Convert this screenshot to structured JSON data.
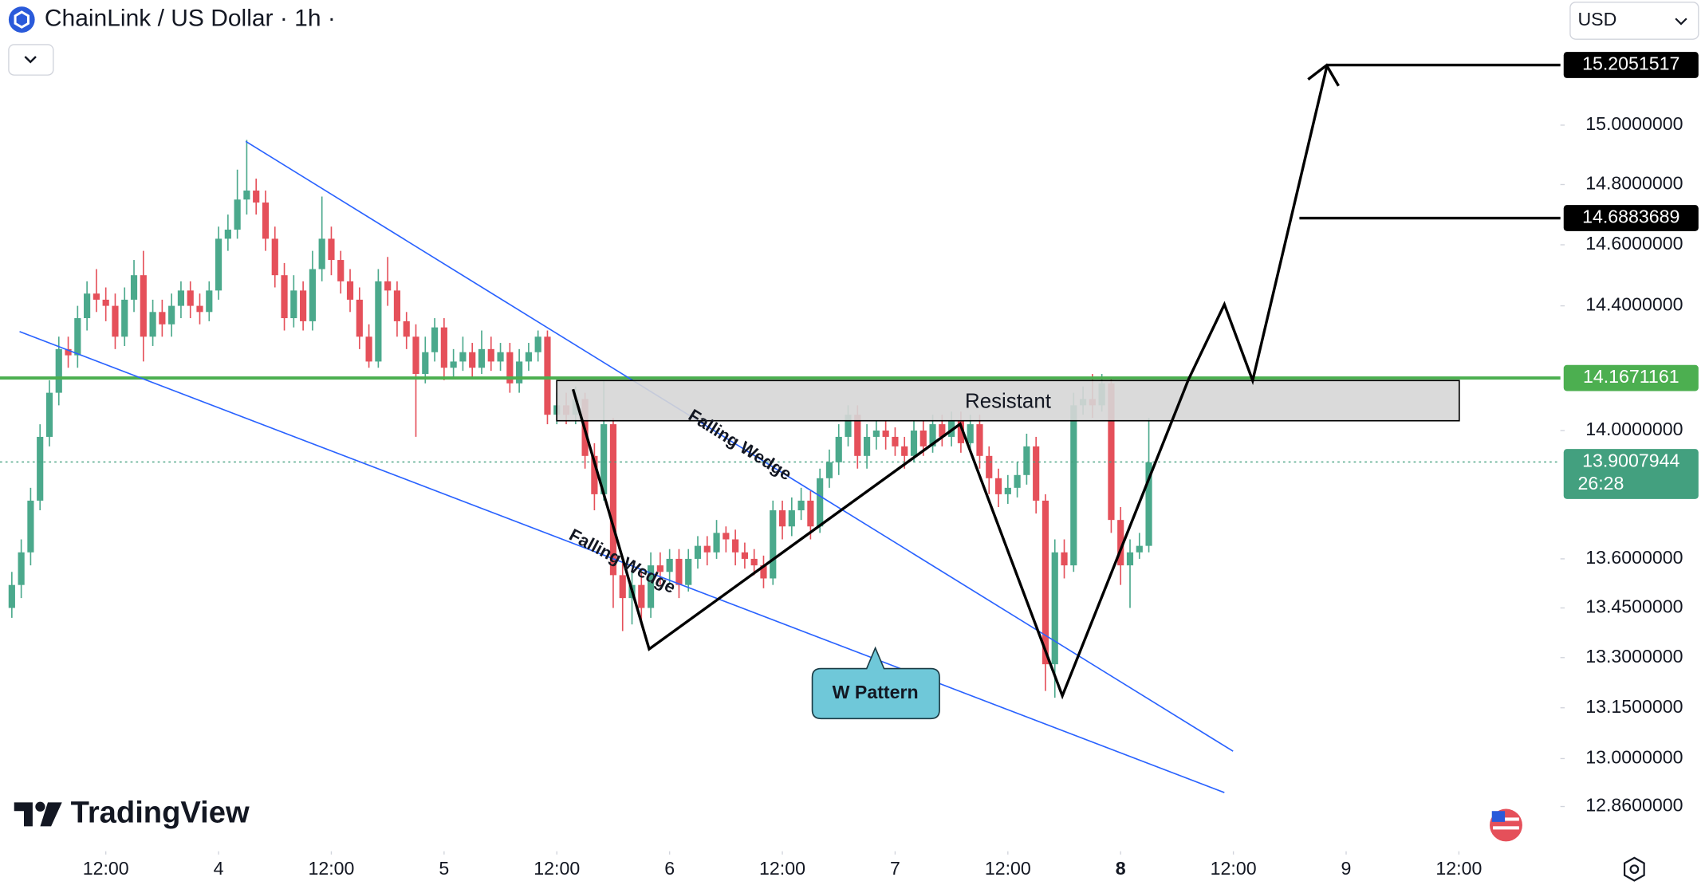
{
  "header": {
    "title": "ChainLink / US Dollar · 1h ·",
    "currency": "USD"
  },
  "brand": "TradingView",
  "chart_data": {
    "type": "candlestick",
    "log_scale": true,
    "ylim": [
      12.74,
      15.43
    ],
    "yticks": [
      {
        "value": 15,
        "label": "15.0000000"
      },
      {
        "value": 14.8,
        "label": "14.8000000"
      },
      {
        "value": 14.6,
        "label": "14.6000000"
      },
      {
        "value": 14.4,
        "label": "14.4000000"
      },
      {
        "value": 14,
        "label": "14.0000000"
      },
      {
        "value": 13.6,
        "label": "13.6000000"
      },
      {
        "value": 13.45,
        "label": "13.4500000"
      },
      {
        "value": 13.3,
        "label": "13.3000000"
      },
      {
        "value": 13.15,
        "label": "13.1500000"
      },
      {
        "value": 13,
        "label": "13.0000000"
      },
      {
        "value": 12.86,
        "label": "12.8600000"
      }
    ],
    "xlim": [
      -23.26,
      142.8
    ],
    "xticks": [
      {
        "value": -12,
        "label": "12:00"
      },
      {
        "value": 0,
        "label": "4"
      },
      {
        "value": 12,
        "label": "12:00"
      },
      {
        "value": 24,
        "label": "5"
      },
      {
        "value": 36,
        "label": "12:00"
      },
      {
        "value": 48,
        "label": "6"
      },
      {
        "value": 60,
        "label": "12:00"
      },
      {
        "value": 72,
        "label": "7"
      },
      {
        "value": 84,
        "label": "12:00"
      },
      {
        "value": 96,
        "label": "8"
      },
      {
        "value": 108,
        "label": "12:00"
      },
      {
        "value": 120,
        "label": "9"
      },
      {
        "value": 132,
        "label": "12:00"
      }
    ],
    "series": [
      {
        "up_color": "#4ba98c",
        "down_color": "#e5505a",
        "x": [
          -22,
          -21,
          -20,
          -19,
          -18,
          -17,
          -16,
          -15,
          -14,
          -13,
          -12,
          -11,
          -10,
          -9,
          -8,
          -7,
          -6,
          -5,
          -4,
          -3,
          -2,
          -1,
          0,
          1,
          2,
          3,
          4,
          5,
          6,
          7,
          8,
          9,
          10,
          11,
          12,
          13,
          14,
          15,
          16,
          17,
          18,
          19,
          20,
          21,
          22,
          23,
          24,
          25,
          26,
          27,
          28,
          29,
          30,
          31,
          32,
          33,
          34,
          35,
          36,
          37,
          38,
          39,
          40,
          41,
          42,
          43,
          44,
          45,
          46,
          47,
          48,
          49,
          50,
          51,
          52,
          53,
          54,
          55,
          56,
          57,
          58,
          59,
          60,
          61,
          62,
          63,
          64,
          65,
          66,
          67,
          68,
          69,
          70,
          71,
          72,
          73,
          74,
          75,
          76,
          77,
          78,
          79,
          80,
          81,
          82,
          83,
          84,
          85,
          86,
          87,
          88,
          89,
          90,
          91,
          92,
          93,
          94,
          95,
          96,
          97,
          98,
          99
        ],
        "open": [
          13.45,
          13.52,
          13.62,
          13.78,
          13.98,
          14.12,
          14.26,
          14.24,
          14.36,
          14.44,
          14.42,
          14.4,
          14.3,
          14.42,
          14.5,
          14.3,
          14.38,
          14.34,
          14.4,
          14.45,
          14.4,
          14.38,
          14.45,
          14.62,
          14.65,
          14.75,
          14.78,
          14.74,
          14.62,
          14.5,
          14.36,
          14.45,
          14.35,
          14.52,
          14.62,
          14.55,
          14.48,
          14.42,
          14.3,
          14.22,
          14.48,
          14.45,
          14.35,
          14.3,
          14.18,
          14.25,
          14.33,
          14.2,
          14.22,
          14.25,
          14.2,
          14.26,
          14.22,
          14.25,
          14.15,
          14.22,
          14.25,
          14.3,
          14.05,
          14.08,
          14.05,
          14.1,
          13.92,
          13.8,
          14.02,
          13.55,
          13.48,
          13.52,
          13.45,
          13.58,
          13.56,
          13.6,
          13.52,
          13.6,
          13.64,
          13.62,
          13.68,
          13.66,
          13.62,
          13.6,
          13.58,
          13.54,
          13.75,
          13.7,
          13.75,
          13.78,
          13.7,
          13.85,
          13.9,
          13.98,
          14.05,
          13.92,
          13.98,
          14.0,
          13.98,
          13.95,
          13.92,
          14.0,
          13.95,
          14.02,
          13.98,
          14.03,
          13.96,
          14.02,
          13.92,
          13.85,
          13.8,
          13.82,
          13.86,
          13.95,
          13.78,
          13.28,
          13.62,
          13.58,
          14.08,
          14.1,
          14.08,
          14.15,
          13.72,
          13.58,
          13.62,
          13.64
        ],
        "high": [
          13.56,
          13.66,
          13.82,
          14.02,
          14.16,
          14.3,
          14.3,
          14.4,
          14.48,
          14.52,
          14.46,
          14.44,
          14.46,
          14.55,
          14.58,
          14.42,
          14.42,
          14.44,
          14.48,
          14.48,
          14.44,
          14.48,
          14.66,
          14.7,
          14.85,
          14.95,
          14.82,
          14.78,
          14.66,
          14.54,
          14.5,
          14.48,
          14.58,
          14.76,
          14.66,
          14.58,
          14.52,
          14.46,
          14.34,
          14.52,
          14.56,
          14.48,
          14.38,
          14.34,
          14.3,
          14.36,
          14.36,
          14.26,
          14.3,
          14.28,
          14.32,
          14.3,
          14.28,
          14.28,
          14.26,
          14.28,
          14.32,
          14.32,
          14.12,
          14.12,
          14.14,
          14.12,
          13.96,
          14.16,
          14.04,
          13.6,
          13.56,
          13.56,
          13.62,
          13.62,
          13.63,
          13.63,
          13.63,
          13.67,
          13.67,
          13.72,
          13.7,
          13.69,
          13.65,
          13.63,
          13.61,
          13.78,
          13.78,
          13.79,
          13.82,
          13.81,
          13.88,
          13.94,
          14.02,
          14.08,
          14.08,
          14.02,
          14.03,
          14.03,
          14.01,
          13.98,
          14.03,
          14.03,
          14.05,
          14.05,
          14.06,
          14.06,
          14.05,
          14.05,
          13.95,
          13.88,
          13.86,
          13.9,
          13.99,
          13.98,
          13.8,
          13.66,
          13.66,
          14.12,
          14.14,
          14.18,
          14.18,
          14.17,
          13.76,
          13.66,
          13.68,
          14.04
        ],
        "low": [
          13.42,
          13.48,
          13.58,
          13.75,
          13.95,
          14.08,
          14.2,
          14.2,
          14.32,
          14.38,
          14.35,
          14.26,
          14.27,
          14.38,
          14.22,
          14.27,
          14.3,
          14.3,
          14.36,
          14.36,
          14.34,
          14.35,
          14.42,
          14.58,
          14.62,
          14.7,
          14.7,
          14.58,
          14.46,
          14.32,
          14.33,
          14.32,
          14.32,
          14.48,
          14.5,
          14.44,
          14.38,
          14.26,
          14.2,
          14.2,
          14.4,
          14.3,
          14.26,
          13.98,
          14.15,
          14.22,
          14.16,
          14.17,
          14.19,
          14.17,
          14.18,
          14.19,
          14.19,
          14.12,
          14.12,
          14.19,
          14.22,
          14.02,
          14.02,
          14.02,
          14.02,
          13.88,
          13.75,
          13.78,
          13.45,
          13.38,
          13.4,
          13.4,
          13.42,
          13.52,
          13.52,
          13.48,
          13.5,
          13.57,
          13.58,
          13.6,
          13.62,
          13.58,
          13.57,
          13.55,
          13.51,
          13.52,
          13.66,
          13.67,
          13.72,
          13.66,
          13.68,
          13.82,
          13.86,
          13.95,
          13.88,
          13.88,
          13.94,
          13.94,
          13.92,
          13.88,
          13.9,
          13.92,
          13.93,
          13.95,
          13.95,
          13.93,
          13.93,
          13.88,
          13.8,
          13.76,
          13.77,
          13.79,
          13.83,
          13.74,
          13.2,
          13.18,
          13.54,
          13.56,
          14.05,
          14.04,
          14.06,
          13.68,
          13.52,
          13.45,
          13.6,
          13.62
        ],
        "close": [
          13.52,
          13.62,
          13.78,
          13.98,
          14.12,
          14.26,
          14.24,
          14.36,
          14.44,
          14.42,
          14.4,
          14.3,
          14.42,
          14.5,
          14.3,
          14.38,
          14.34,
          14.4,
          14.45,
          14.4,
          14.38,
          14.45,
          14.62,
          14.65,
          14.75,
          14.78,
          14.74,
          14.62,
          14.5,
          14.36,
          14.45,
          14.35,
          14.52,
          14.62,
          14.55,
          14.48,
          14.42,
          14.3,
          14.22,
          14.48,
          14.45,
          14.35,
          14.3,
          14.18,
          14.25,
          14.33,
          14.2,
          14.22,
          14.25,
          14.2,
          14.26,
          14.22,
          14.25,
          14.15,
          14.22,
          14.25,
          14.3,
          14.05,
          14.08,
          14.05,
          14.1,
          13.92,
          13.8,
          14.02,
          13.55,
          13.48,
          13.52,
          13.45,
          13.58,
          13.56,
          13.6,
          13.52,
          13.6,
          13.64,
          13.62,
          13.68,
          13.66,
          13.62,
          13.6,
          13.58,
          13.54,
          13.75,
          13.7,
          13.75,
          13.78,
          13.7,
          13.85,
          13.9,
          13.98,
          14.05,
          13.92,
          13.98,
          14.0,
          13.98,
          13.95,
          13.92,
          14.0,
          13.95,
          14.02,
          13.98,
          14.03,
          13.96,
          14.02,
          13.92,
          13.85,
          13.8,
          13.82,
          13.86,
          13.95,
          13.78,
          13.28,
          13.62,
          13.58,
          14.08,
          14.1,
          14.08,
          14.15,
          13.72,
          13.58,
          13.62,
          13.64,
          13.9
        ]
      }
    ],
    "price_labels": [
      {
        "value": 15.2051517,
        "color": "#000000",
        "line_style": "solid"
      },
      {
        "value": 14.6883689,
        "color": "#000000",
        "line_style": "solid"
      },
      {
        "value": 14.1671161,
        "color": "#4caf50",
        "line_style": "solid"
      },
      {
        "value": 13.9007944,
        "color": "#43a07f",
        "line_style": "dotted"
      }
    ],
    "countdown": "26:28",
    "annotations": {
      "wedge_upper": "Falling Wedge",
      "wedge_lower": "Falling Wedge",
      "zone": "Resistant",
      "pattern": "W Pattern"
    }
  }
}
